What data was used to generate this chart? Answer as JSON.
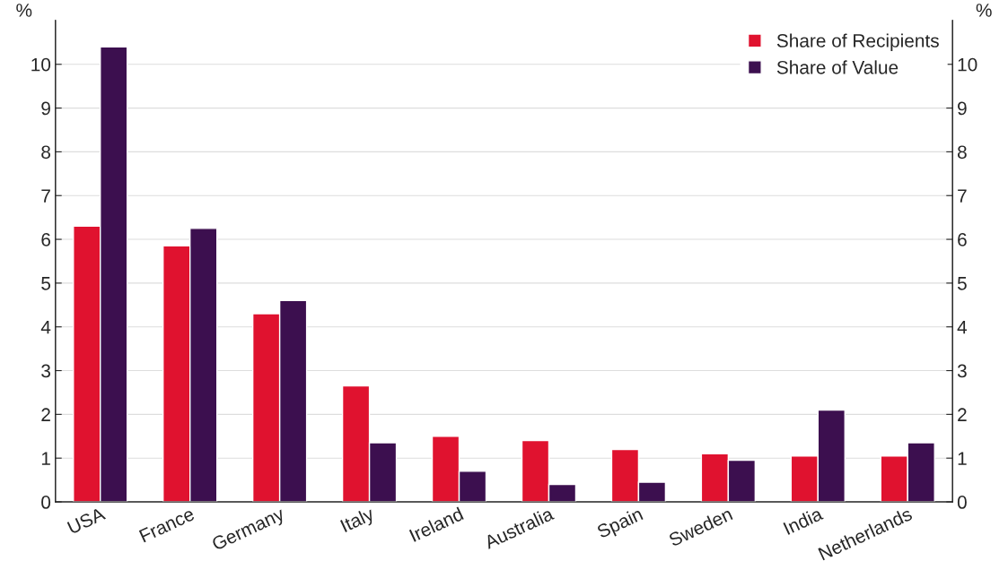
{
  "chart_data": {
    "type": "bar",
    "categories": [
      "USA",
      "France",
      "Germany",
      "Italy",
      "Ireland",
      "Australia",
      "Spain",
      "Sweden",
      "India",
      "Netherlands"
    ],
    "series": [
      {
        "name": "Share of Recipients",
        "color": "#e0122f",
        "values": [
          6.3,
          5.85,
          4.3,
          2.65,
          1.5,
          1.4,
          1.2,
          1.1,
          1.05,
          1.05
        ]
      },
      {
        "name": "Share of Value",
        "color": "#3c0f4f",
        "values": [
          10.4,
          6.25,
          4.6,
          1.35,
          0.7,
          0.4,
          0.45,
          0.95,
          2.1,
          1.35
        ]
      }
    ],
    "ylabel": "%",
    "y2label": "%",
    "ylim": [
      0,
      11
    ],
    "yticks": [
      0,
      1,
      2,
      3,
      4,
      5,
      6,
      7,
      8,
      9,
      10
    ],
    "y2lim": [
      0,
      11
    ],
    "y2ticks": [
      0,
      1,
      2,
      3,
      4,
      5,
      6,
      7,
      8,
      9,
      10
    ],
    "grid": "y",
    "legend": "top right"
  }
}
